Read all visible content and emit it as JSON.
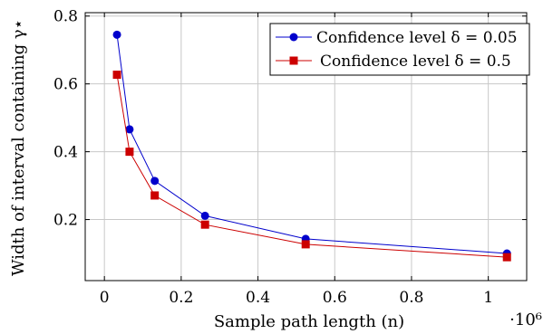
{
  "chart_data": {
    "type": "line",
    "xlabel": "Sample path length (n)",
    "ylabel": "Width of interval containing γ⋆",
    "x_scale_label": "·10⁶",
    "xlim": [
      -0.05,
      1.1
    ],
    "ylim": [
      0.02,
      0.81
    ],
    "x_ticks": [
      0,
      0.2,
      0.4,
      0.6,
      0.8,
      1.0
    ],
    "x_tick_labels": [
      "0",
      "0.2",
      "0.4",
      "0.6",
      "0.8",
      "1"
    ],
    "y_ticks": [
      0.2,
      0.4,
      0.6,
      0.8
    ],
    "y_tick_labels": [
      "0.2",
      "0.4",
      "0.6",
      "0.8"
    ],
    "grid": true,
    "legend_position": "top-right",
    "series": [
      {
        "name": "Confidence level δ = 0.05",
        "color": "#0000cc",
        "marker": "circle",
        "x": [
          0.032768,
          0.065536,
          0.131072,
          0.262144,
          0.524288,
          1.048576
        ],
        "y": [
          0.745,
          0.466,
          0.314,
          0.211,
          0.143,
          0.1
        ]
      },
      {
        "name": "Confidence level δ = 0.5",
        "color": "#cc0000",
        "marker": "square",
        "x": [
          0.032768,
          0.065536,
          0.131072,
          0.262144,
          0.524288,
          1.048576
        ],
        "y": [
          0.627,
          0.4,
          0.271,
          0.185,
          0.127,
          0.089
        ]
      }
    ]
  }
}
